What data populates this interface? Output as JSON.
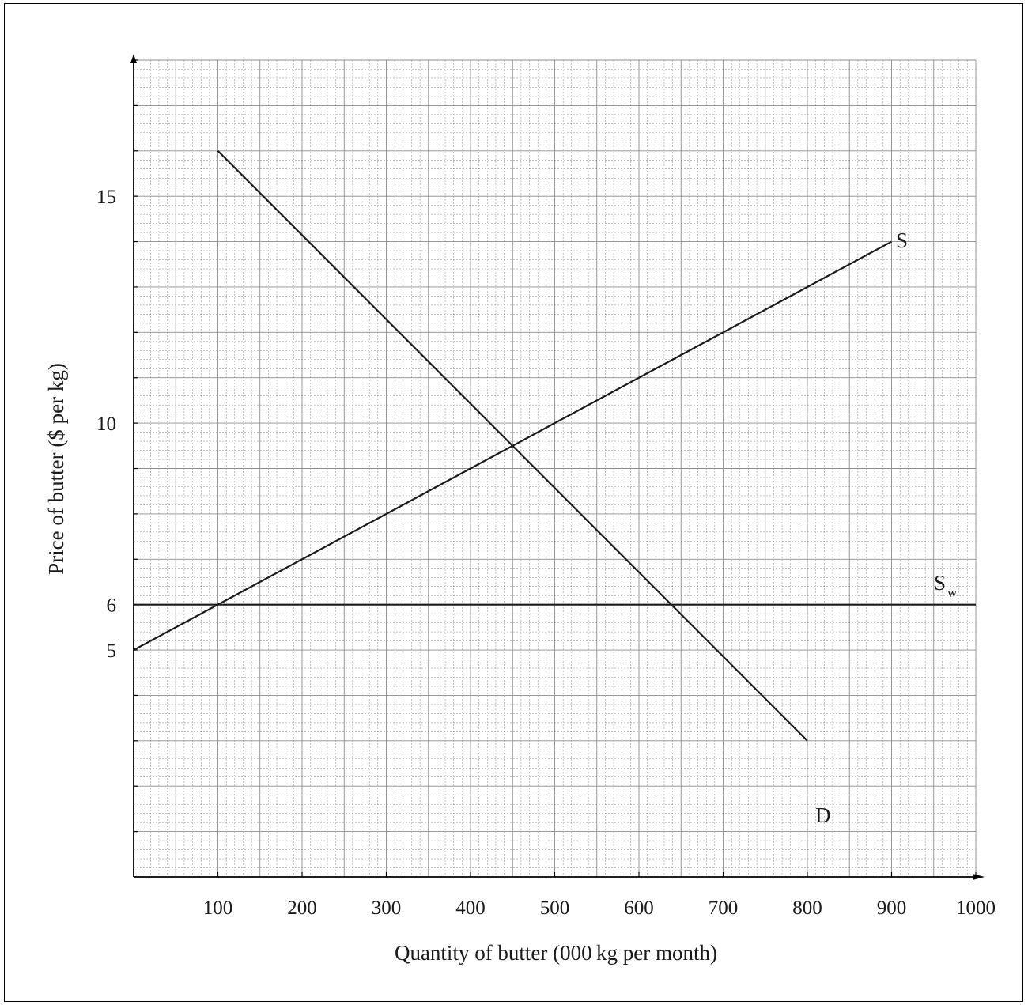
{
  "chart_data": {
    "type": "line",
    "xlabel": "Quantity of butter (000 kg per month)",
    "ylabel": "Price of butter ($ per kg)",
    "xlim": [
      0,
      1000
    ],
    "ylim": [
      0,
      18
    ],
    "x_ticks": [
      100,
      200,
      300,
      400,
      500,
      600,
      700,
      800,
      900,
      1000
    ],
    "y_ticks": [
      5,
      6,
      10,
      15
    ],
    "grid": true,
    "series": [
      {
        "name": "S",
        "x": [
          0,
          900
        ],
        "y": [
          5,
          14
        ]
      },
      {
        "name": "D",
        "x": [
          100,
          800
        ],
        "y": [
          16,
          3
        ]
      },
      {
        "name": "S",
        "subscript": "w",
        "x": [
          0,
          1000
        ],
        "y": [
          6,
          6
        ]
      }
    ],
    "colors": {
      "line": "#1a1a1a",
      "grid": "#8c8c8c",
      "frame": "#000000"
    }
  }
}
